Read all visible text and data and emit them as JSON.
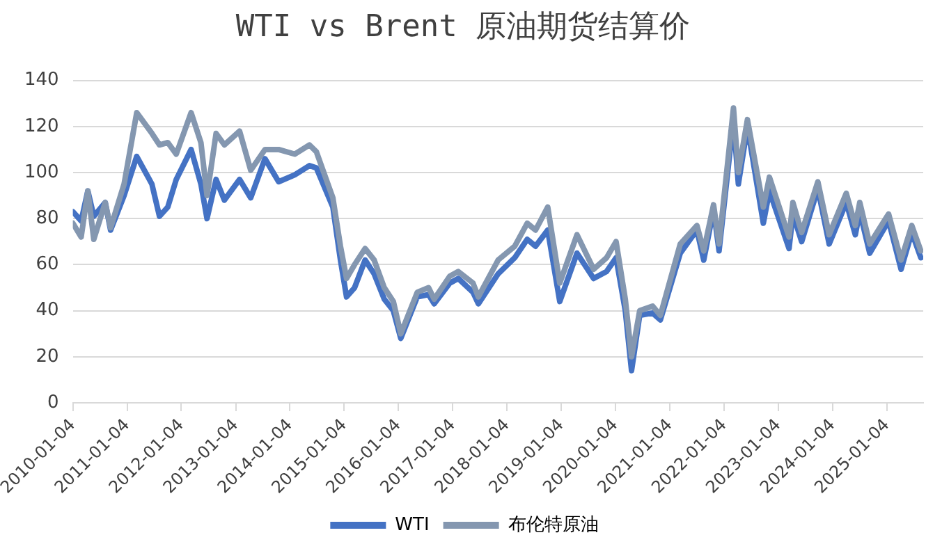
{
  "chart_data": {
    "type": "line",
    "title": "WTI vs Brent 原油期货结算价",
    "x": [
      "2010-01-04",
      "2010-03-01",
      "2010-04-15",
      "2010-05-25",
      "2010-08-10",
      "2010-09-15",
      "2010-12-15",
      "2011-03-10",
      "2011-06-20",
      "2011-08-10",
      "2011-10-05",
      "2011-12-01",
      "2012-03-10",
      "2012-05-15",
      "2012-06-25",
      "2012-08-25",
      "2012-10-20",
      "2013-01-30",
      "2013-04-15",
      "2013-07-20",
      "2013-10-20",
      "2014-02-05",
      "2014-05-15",
      "2014-07-01",
      "2014-10-20",
      "2014-12-10",
      "2015-01-20",
      "2015-03-15",
      "2015-05-25",
      "2015-07-25",
      "2015-10-01",
      "2015-12-01",
      "2016-01-20",
      "2016-05-10",
      "2016-07-25",
      "2016-09-01",
      "2016-12-15",
      "2017-02-10",
      "2017-05-20",
      "2017-06-25",
      "2017-11-05",
      "2018-02-25",
      "2018-05-20",
      "2018-07-15",
      "2018-10-05",
      "2018-12-25",
      "2019-04-20",
      "2019-08-10",
      "2019-11-05",
      "2020-01-08",
      "2020-03-10",
      "2020-04-21",
      "2020-06-15",
      "2020-09-10",
      "2020-11-01",
      "2021-03-15",
      "2021-07-05",
      "2021-08-20",
      "2021-10-25",
      "2021-12-01",
      "2022-03-08",
      "2022-04-10",
      "2022-06-10",
      "2022-09-25",
      "2022-11-05",
      "2023-03-17",
      "2023-04-12",
      "2023-06-10",
      "2023-09-27",
      "2023-12-12",
      "2024-04-05",
      "2024-06-05",
      "2024-07-05",
      "2024-09-10",
      "2025-01-15",
      "2025-04-09",
      "2025-06-20",
      "2025-08-20"
    ],
    "series": [
      {
        "name": "WTI",
        "color": "#4472c4",
        "values": [
          83,
          79,
          92,
          81,
          87,
          75,
          90,
          107,
          95,
          81,
          85,
          97,
          110,
          95,
          80,
          97,
          88,
          97,
          89,
          106,
          96,
          99,
          103,
          102,
          85,
          62,
          46,
          50,
          62,
          56,
          45,
          40,
          28,
          46,
          47,
          43,
          52,
          54,
          48,
          43,
          56,
          63,
          71,
          68,
          75,
          44,
          65,
          54,
          57,
          63,
          40,
          14,
          38,
          39,
          36,
          65,
          75,
          62,
          84,
          66,
          123,
          95,
          120,
          78,
          92,
          67,
          82,
          70,
          93,
          69,
          87,
          73,
          83,
          65,
          79,
          58,
          74,
          63
        ]
      },
      {
        "name": "布伦特原油",
        "color": "#8497b0",
        "values": [
          78,
          72,
          92,
          71,
          87,
          76,
          95,
          126,
          117,
          112,
          113,
          108,
          126,
          113,
          90,
          117,
          112,
          118,
          101,
          110,
          110,
          108,
          112,
          109,
          89,
          68,
          54,
          60,
          67,
          62,
          50,
          44,
          30,
          48,
          50,
          45,
          55,
          57,
          52,
          46,
          62,
          68,
          78,
          75,
          85,
          52,
          73,
          58,
          63,
          70,
          45,
          20,
          40,
          42,
          38,
          69,
          77,
          66,
          86,
          69,
          128,
          100,
          123,
          85,
          98,
          72,
          87,
          74,
          96,
          73,
          91,
          77,
          87,
          69,
          82,
          62,
          77,
          66
        ]
      }
    ],
    "xlim": [
      "2010-01-04",
      "2025-09-05"
    ],
    "xticks": [
      "2010-01-04",
      "2011-01-04",
      "2012-01-04",
      "2013-01-04",
      "2014-01-04",
      "2015-01-04",
      "2016-01-04",
      "2017-01-04",
      "2018-01-04",
      "2019-01-04",
      "2020-01-04",
      "2021-01-04",
      "2022-01-04",
      "2023-01-04",
      "2024-01-04",
      "2025-01-04"
    ],
    "ylim": [
      0,
      140
    ],
    "yticks": [
      0,
      20,
      40,
      60,
      80,
      100,
      120,
      140
    ],
    "grid": "y",
    "legend": "bottom",
    "marker": "none",
    "line_style": "solid"
  }
}
